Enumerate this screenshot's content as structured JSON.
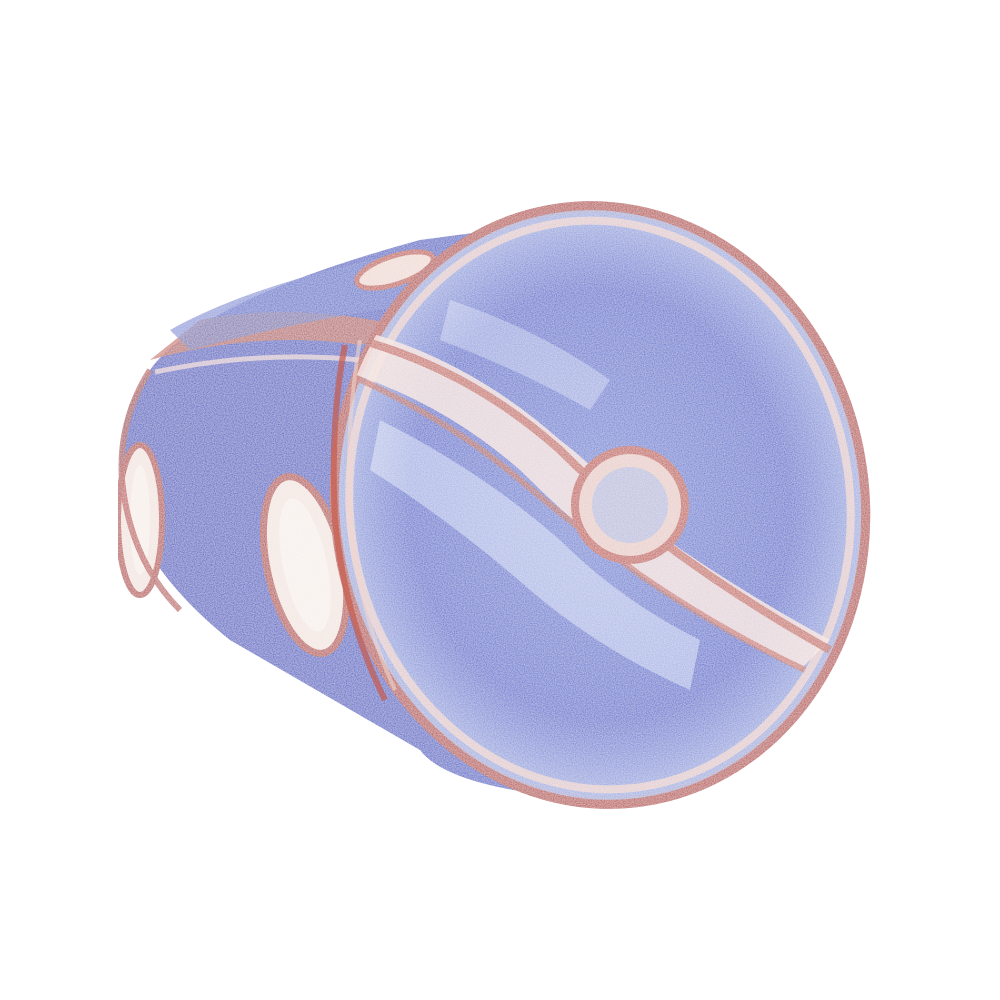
{
  "scene": {
    "background_color": "#ffffff",
    "colormap": {
      "name": "coolwarm",
      "low_color": "#3b4cc0",
      "mid_color": "#f0f0f0",
      "high_color": "#b40426"
    },
    "object": "point-cloud-cylinder"
  }
}
